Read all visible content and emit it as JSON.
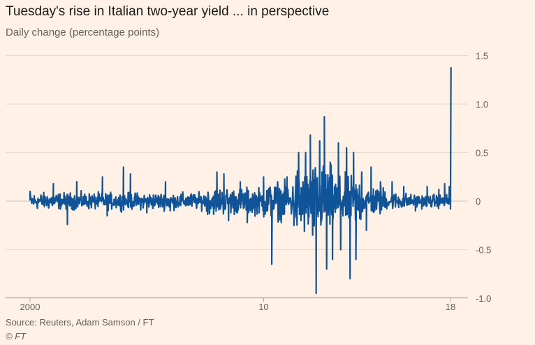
{
  "chart_data": {
    "type": "line",
    "title": "Tuesday's rise in Italian two-year yield ... in perspective",
    "subtitle": "Daily change (percentage points)",
    "xlabel": "",
    "ylabel": "Daily change (percentage points)",
    "ylim": [
      -1.0,
      1.5
    ],
    "xlim": [
      2000,
      2018.1
    ],
    "yticks": [
      1.5,
      1.0,
      0.5,
      0,
      -0.5,
      -1.0
    ],
    "ytick_labels": [
      "1.5",
      "1.0",
      "0.5",
      "0",
      "-0.5",
      "-1.0"
    ],
    "xticks": [
      2000,
      2010,
      2018
    ],
    "xtick_labels": [
      "2000",
      "10",
      "18"
    ],
    "grid": true,
    "line_color": "#0f5499",
    "baseline_noise_amplitude": 0.05,
    "notable_points": [
      {
        "x": 2000.0,
        "y": 0.1
      },
      {
        "x": 2001.0,
        "y": 0.18
      },
      {
        "x": 2001.6,
        "y": -0.24
      },
      {
        "x": 2002.0,
        "y": 0.2
      },
      {
        "x": 2003.1,
        "y": 0.25
      },
      {
        "x": 2003.3,
        "y": -0.15
      },
      {
        "x": 2004.0,
        "y": 0.35
      },
      {
        "x": 2004.3,
        "y": 0.28
      },
      {
        "x": 2005.0,
        "y": -0.12
      },
      {
        "x": 2005.8,
        "y": 0.2
      },
      {
        "x": 2006.0,
        "y": -0.1
      },
      {
        "x": 2008.0,
        "y": 0.3
      },
      {
        "x": 2008.3,
        "y": 0.28
      },
      {
        "x": 2008.5,
        "y": -0.2
      },
      {
        "x": 2009.0,
        "y": 0.2
      },
      {
        "x": 2009.3,
        "y": -0.22
      },
      {
        "x": 2010.0,
        "y": 0.25
      },
      {
        "x": 2010.35,
        "y": -0.65
      },
      {
        "x": 2010.6,
        "y": 0.2
      },
      {
        "x": 2011.0,
        "y": 0.25
      },
      {
        "x": 2011.3,
        "y": -0.25
      },
      {
        "x": 2011.5,
        "y": 0.5
      },
      {
        "x": 2011.6,
        "y": -0.2
      },
      {
        "x": 2011.8,
        "y": 0.5
      },
      {
        "x": 2012.0,
        "y": 0.68
      },
      {
        "x": 2012.1,
        "y": -0.35
      },
      {
        "x": 2012.25,
        "y": -0.95
      },
      {
        "x": 2012.4,
        "y": 0.62
      },
      {
        "x": 2012.5,
        "y": 0.3
      },
      {
        "x": 2012.6,
        "y": 0.87
      },
      {
        "x": 2012.7,
        "y": -0.7
      },
      {
        "x": 2012.85,
        "y": 0.4
      },
      {
        "x": 2012.95,
        "y": -0.6
      },
      {
        "x": 2013.2,
        "y": 0.6
      },
      {
        "x": 2013.3,
        "y": -0.5
      },
      {
        "x": 2013.55,
        "y": 0.55
      },
      {
        "x": 2013.7,
        "y": -0.8
      },
      {
        "x": 2013.85,
        "y": 0.5
      },
      {
        "x": 2013.95,
        "y": -0.6
      },
      {
        "x": 2014.2,
        "y": 0.3
      },
      {
        "x": 2014.4,
        "y": -0.3
      },
      {
        "x": 2014.6,
        "y": 0.35
      },
      {
        "x": 2015.0,
        "y": 0.2
      },
      {
        "x": 2015.5,
        "y": 0.2
      },
      {
        "x": 2016.0,
        "y": 0.15
      },
      {
        "x": 2016.5,
        "y": -0.1
      },
      {
        "x": 2017.0,
        "y": 0.15
      },
      {
        "x": 2017.5,
        "y": 0.12
      },
      {
        "x": 2017.75,
        "y": 0.18
      },
      {
        "x": 2017.95,
        "y": 0.15
      },
      {
        "x": 2018.0,
        "y": -0.08
      },
      {
        "x": 2018.02,
        "y": 1.38
      }
    ]
  },
  "source": "Source: Reuters, Adam Samson / FT",
  "credit": "© FT"
}
